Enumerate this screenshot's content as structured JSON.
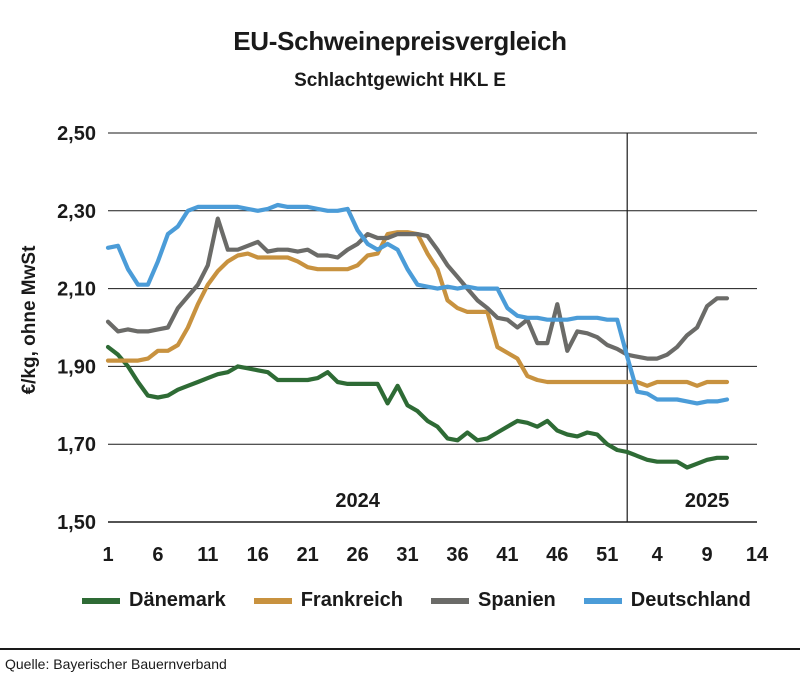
{
  "chart_data": {
    "type": "line",
    "title": "EU-Schweinepreisvergleich",
    "subtitle": "Schlachtgewicht HKL E",
    "ylabel": "€/kg, ohne MwSt",
    "ylim": [
      1.5,
      2.5
    ],
    "yticks": [
      "2,50",
      "2,30",
      "2,10",
      "1,90",
      "1,70",
      "1,50"
    ],
    "ytick_values": [
      2.5,
      2.3,
      2.1,
      1.9,
      1.7,
      1.5
    ],
    "xlim": [
      1,
      66
    ],
    "xticks": [
      "1",
      "6",
      "11",
      "16",
      "21",
      "26",
      "31",
      "36",
      "41",
      "46",
      "51",
      "4",
      "9",
      "14"
    ],
    "xtick_values": [
      1,
      6,
      11,
      16,
      21,
      26,
      31,
      36,
      41,
      46,
      51,
      56,
      61,
      66
    ],
    "year_labels": [
      {
        "label": "2024",
        "x": 26
      },
      {
        "label": "2025",
        "x": 61
      }
    ],
    "year_divider_x": 53,
    "grid": "horizontal",
    "legend_position": "bottom",
    "source": "Quelle: Bayerischer Bauernverband",
    "series": [
      {
        "name": "Dänemark",
        "color": "#2e6b35",
        "x": [
          1,
          2,
          3,
          4,
          5,
          6,
          7,
          8,
          9,
          10,
          11,
          12,
          13,
          14,
          15,
          16,
          17,
          18,
          19,
          20,
          21,
          22,
          23,
          24,
          25,
          26,
          27,
          28,
          29,
          30,
          31,
          32,
          33,
          34,
          35,
          36,
          37,
          38,
          39,
          40,
          41,
          42,
          43,
          44,
          45,
          46,
          47,
          48,
          49,
          50,
          51,
          52,
          53,
          54,
          55,
          56,
          57,
          58,
          59,
          60,
          61,
          62,
          63
        ],
        "values": [
          1.95,
          1.93,
          1.9,
          1.86,
          1.825,
          1.82,
          1.825,
          1.84,
          1.85,
          1.86,
          1.87,
          1.88,
          1.885,
          1.9,
          1.895,
          1.89,
          1.885,
          1.865,
          1.865,
          1.865,
          1.865,
          1.87,
          1.885,
          1.86,
          1.855,
          1.855,
          1.855,
          1.855,
          1.805,
          1.85,
          1.8,
          1.785,
          1.76,
          1.745,
          1.715,
          1.71,
          1.73,
          1.71,
          1.715,
          1.73,
          1.745,
          1.76,
          1.755,
          1.745,
          1.76,
          1.735,
          1.725,
          1.72,
          1.73,
          1.725,
          1.7,
          1.685,
          1.68,
          1.67,
          1.66,
          1.655,
          1.655,
          1.655,
          1.64,
          1.65,
          1.66,
          1.665,
          1.665
        ]
      },
      {
        "name": "Frankreich",
        "color": "#c8923f",
        "x": [
          1,
          2,
          3,
          4,
          5,
          6,
          7,
          8,
          9,
          10,
          11,
          12,
          13,
          14,
          15,
          16,
          17,
          18,
          19,
          20,
          21,
          22,
          23,
          24,
          25,
          26,
          27,
          28,
          29,
          30,
          31,
          32,
          33,
          34,
          35,
          36,
          37,
          38,
          39,
          40,
          41,
          42,
          43,
          44,
          45,
          46,
          47,
          48,
          49,
          50,
          51,
          52,
          53,
          54,
          55,
          56,
          57,
          58,
          59,
          60,
          61,
          62,
          63
        ],
        "values": [
          1.915,
          1.915,
          1.915,
          1.915,
          1.92,
          1.94,
          1.94,
          1.955,
          2.0,
          2.06,
          2.11,
          2.145,
          2.17,
          2.185,
          2.19,
          2.18,
          2.18,
          2.18,
          2.18,
          2.17,
          2.155,
          2.15,
          2.15,
          2.15,
          2.15,
          2.16,
          2.185,
          2.19,
          2.24,
          2.245,
          2.245,
          2.24,
          2.19,
          2.15,
          2.07,
          2.05,
          2.04,
          2.04,
          2.04,
          1.95,
          1.935,
          1.92,
          1.875,
          1.865,
          1.86,
          1.86,
          1.86,
          1.86,
          1.86,
          1.86,
          1.86,
          1.86,
          1.86,
          1.86,
          1.85,
          1.86,
          1.86,
          1.86,
          1.86,
          1.85,
          1.86,
          1.86,
          1.86
        ]
      },
      {
        "name": "Spanien",
        "color": "#6b6b68",
        "x": [
          1,
          2,
          3,
          4,
          5,
          6,
          7,
          8,
          9,
          10,
          11,
          12,
          13,
          14,
          15,
          16,
          17,
          18,
          19,
          20,
          21,
          22,
          23,
          24,
          25,
          26,
          27,
          28,
          29,
          30,
          31,
          32,
          33,
          34,
          35,
          36,
          37,
          38,
          39,
          40,
          41,
          42,
          43,
          44,
          45,
          46,
          47,
          48,
          49,
          50,
          51,
          52,
          53,
          54,
          55,
          56,
          57,
          58,
          59,
          60,
          61,
          62,
          63
        ],
        "values": [
          2.015,
          1.99,
          1.995,
          1.99,
          1.99,
          1.995,
          2.0,
          2.05,
          2.08,
          2.11,
          2.16,
          2.28,
          2.2,
          2.2,
          2.21,
          2.22,
          2.195,
          2.2,
          2.2,
          2.195,
          2.2,
          2.185,
          2.185,
          2.18,
          2.2,
          2.215,
          2.24,
          2.23,
          2.23,
          2.24,
          2.24,
          2.24,
          2.235,
          2.2,
          2.16,
          2.13,
          2.1,
          2.07,
          2.05,
          2.025,
          2.02,
          2.0,
          2.02,
          1.96,
          1.96,
          2.06,
          1.94,
          1.99,
          1.985,
          1.975,
          1.955,
          1.945,
          1.93,
          1.925,
          1.92,
          1.92,
          1.93,
          1.95,
          1.98,
          2.0,
          2.055,
          2.075,
          2.075
        ]
      },
      {
        "name": "Deutschland",
        "color": "#4b9cd8",
        "x": [
          1,
          2,
          3,
          4,
          5,
          6,
          7,
          8,
          9,
          10,
          11,
          12,
          13,
          14,
          15,
          16,
          17,
          18,
          19,
          20,
          21,
          22,
          23,
          24,
          25,
          26,
          27,
          28,
          29,
          30,
          31,
          32,
          33,
          34,
          35,
          36,
          37,
          38,
          39,
          40,
          41,
          42,
          43,
          44,
          45,
          46,
          47,
          48,
          49,
          50,
          51,
          52,
          53,
          54,
          55,
          56,
          57,
          58,
          59,
          60,
          61,
          62,
          63
        ],
        "values": [
          2.205,
          2.21,
          2.15,
          2.11,
          2.11,
          2.17,
          2.24,
          2.26,
          2.3,
          2.31,
          2.31,
          2.31,
          2.31,
          2.31,
          2.305,
          2.3,
          2.305,
          2.315,
          2.31,
          2.31,
          2.31,
          2.305,
          2.3,
          2.3,
          2.305,
          2.25,
          2.215,
          2.2,
          2.215,
          2.2,
          2.15,
          2.11,
          2.105,
          2.1,
          2.105,
          2.1,
          2.105,
          2.1,
          2.1,
          2.1,
          2.05,
          2.03,
          2.025,
          2.025,
          2.02,
          2.02,
          2.02,
          2.025,
          2.025,
          2.025,
          2.02,
          2.02,
          1.925,
          1.835,
          1.83,
          1.815,
          1.815,
          1.815,
          1.81,
          1.805,
          1.81,
          1.81,
          1.815
        ]
      }
    ]
  }
}
